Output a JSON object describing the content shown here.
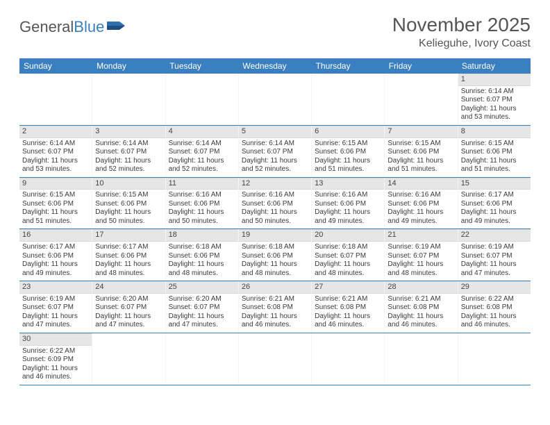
{
  "logo": {
    "general": "General",
    "blue": "Blue"
  },
  "title": "November 2025",
  "subtitle": "Kelieguhe, Ivory Coast",
  "colors": {
    "header_bg": "#3a7fbf",
    "header_text": "#ffffff",
    "daynum_bg": "#e6e6e6",
    "cell_text": "#3a3a3a",
    "title_color": "#555555",
    "border_color": "#3a7fbf"
  },
  "days_of_week": [
    "Sunday",
    "Monday",
    "Tuesday",
    "Wednesday",
    "Thursday",
    "Friday",
    "Saturday"
  ],
  "weeks": [
    [
      {
        "n": "",
        "sr": "",
        "ss": "",
        "dl": ""
      },
      {
        "n": "",
        "sr": "",
        "ss": "",
        "dl": ""
      },
      {
        "n": "",
        "sr": "",
        "ss": "",
        "dl": ""
      },
      {
        "n": "",
        "sr": "",
        "ss": "",
        "dl": ""
      },
      {
        "n": "",
        "sr": "",
        "ss": "",
        "dl": ""
      },
      {
        "n": "",
        "sr": "",
        "ss": "",
        "dl": ""
      },
      {
        "n": "1",
        "sr": "Sunrise: 6:14 AM",
        "ss": "Sunset: 6:07 PM",
        "dl": "Daylight: 11 hours and 53 minutes."
      }
    ],
    [
      {
        "n": "2",
        "sr": "Sunrise: 6:14 AM",
        "ss": "Sunset: 6:07 PM",
        "dl": "Daylight: 11 hours and 53 minutes."
      },
      {
        "n": "3",
        "sr": "Sunrise: 6:14 AM",
        "ss": "Sunset: 6:07 PM",
        "dl": "Daylight: 11 hours and 52 minutes."
      },
      {
        "n": "4",
        "sr": "Sunrise: 6:14 AM",
        "ss": "Sunset: 6:07 PM",
        "dl": "Daylight: 11 hours and 52 minutes."
      },
      {
        "n": "5",
        "sr": "Sunrise: 6:14 AM",
        "ss": "Sunset: 6:07 PM",
        "dl": "Daylight: 11 hours and 52 minutes."
      },
      {
        "n": "6",
        "sr": "Sunrise: 6:15 AM",
        "ss": "Sunset: 6:06 PM",
        "dl": "Daylight: 11 hours and 51 minutes."
      },
      {
        "n": "7",
        "sr": "Sunrise: 6:15 AM",
        "ss": "Sunset: 6:06 PM",
        "dl": "Daylight: 11 hours and 51 minutes."
      },
      {
        "n": "8",
        "sr": "Sunrise: 6:15 AM",
        "ss": "Sunset: 6:06 PM",
        "dl": "Daylight: 11 hours and 51 minutes."
      }
    ],
    [
      {
        "n": "9",
        "sr": "Sunrise: 6:15 AM",
        "ss": "Sunset: 6:06 PM",
        "dl": "Daylight: 11 hours and 51 minutes."
      },
      {
        "n": "10",
        "sr": "Sunrise: 6:15 AM",
        "ss": "Sunset: 6:06 PM",
        "dl": "Daylight: 11 hours and 50 minutes."
      },
      {
        "n": "11",
        "sr": "Sunrise: 6:16 AM",
        "ss": "Sunset: 6:06 PM",
        "dl": "Daylight: 11 hours and 50 minutes."
      },
      {
        "n": "12",
        "sr": "Sunrise: 6:16 AM",
        "ss": "Sunset: 6:06 PM",
        "dl": "Daylight: 11 hours and 50 minutes."
      },
      {
        "n": "13",
        "sr": "Sunrise: 6:16 AM",
        "ss": "Sunset: 6:06 PM",
        "dl": "Daylight: 11 hours and 49 minutes."
      },
      {
        "n": "14",
        "sr": "Sunrise: 6:16 AM",
        "ss": "Sunset: 6:06 PM",
        "dl": "Daylight: 11 hours and 49 minutes."
      },
      {
        "n": "15",
        "sr": "Sunrise: 6:17 AM",
        "ss": "Sunset: 6:06 PM",
        "dl": "Daylight: 11 hours and 49 minutes."
      }
    ],
    [
      {
        "n": "16",
        "sr": "Sunrise: 6:17 AM",
        "ss": "Sunset: 6:06 PM",
        "dl": "Daylight: 11 hours and 49 minutes."
      },
      {
        "n": "17",
        "sr": "Sunrise: 6:17 AM",
        "ss": "Sunset: 6:06 PM",
        "dl": "Daylight: 11 hours and 48 minutes."
      },
      {
        "n": "18",
        "sr": "Sunrise: 6:18 AM",
        "ss": "Sunset: 6:06 PM",
        "dl": "Daylight: 11 hours and 48 minutes."
      },
      {
        "n": "19",
        "sr": "Sunrise: 6:18 AM",
        "ss": "Sunset: 6:06 PM",
        "dl": "Daylight: 11 hours and 48 minutes."
      },
      {
        "n": "20",
        "sr": "Sunrise: 6:18 AM",
        "ss": "Sunset: 6:07 PM",
        "dl": "Daylight: 11 hours and 48 minutes."
      },
      {
        "n": "21",
        "sr": "Sunrise: 6:19 AM",
        "ss": "Sunset: 6:07 PM",
        "dl": "Daylight: 11 hours and 48 minutes."
      },
      {
        "n": "22",
        "sr": "Sunrise: 6:19 AM",
        "ss": "Sunset: 6:07 PM",
        "dl": "Daylight: 11 hours and 47 minutes."
      }
    ],
    [
      {
        "n": "23",
        "sr": "Sunrise: 6:19 AM",
        "ss": "Sunset: 6:07 PM",
        "dl": "Daylight: 11 hours and 47 minutes."
      },
      {
        "n": "24",
        "sr": "Sunrise: 6:20 AM",
        "ss": "Sunset: 6:07 PM",
        "dl": "Daylight: 11 hours and 47 minutes."
      },
      {
        "n": "25",
        "sr": "Sunrise: 6:20 AM",
        "ss": "Sunset: 6:07 PM",
        "dl": "Daylight: 11 hours and 47 minutes."
      },
      {
        "n": "26",
        "sr": "Sunrise: 6:21 AM",
        "ss": "Sunset: 6:08 PM",
        "dl": "Daylight: 11 hours and 46 minutes."
      },
      {
        "n": "27",
        "sr": "Sunrise: 6:21 AM",
        "ss": "Sunset: 6:08 PM",
        "dl": "Daylight: 11 hours and 46 minutes."
      },
      {
        "n": "28",
        "sr": "Sunrise: 6:21 AM",
        "ss": "Sunset: 6:08 PM",
        "dl": "Daylight: 11 hours and 46 minutes."
      },
      {
        "n": "29",
        "sr": "Sunrise: 6:22 AM",
        "ss": "Sunset: 6:08 PM",
        "dl": "Daylight: 11 hours and 46 minutes."
      }
    ],
    [
      {
        "n": "30",
        "sr": "Sunrise: 6:22 AM",
        "ss": "Sunset: 6:09 PM",
        "dl": "Daylight: 11 hours and 46 minutes."
      },
      {
        "n": "",
        "sr": "",
        "ss": "",
        "dl": ""
      },
      {
        "n": "",
        "sr": "",
        "ss": "",
        "dl": ""
      },
      {
        "n": "",
        "sr": "",
        "ss": "",
        "dl": ""
      },
      {
        "n": "",
        "sr": "",
        "ss": "",
        "dl": ""
      },
      {
        "n": "",
        "sr": "",
        "ss": "",
        "dl": ""
      },
      {
        "n": "",
        "sr": "",
        "ss": "",
        "dl": ""
      }
    ]
  ]
}
